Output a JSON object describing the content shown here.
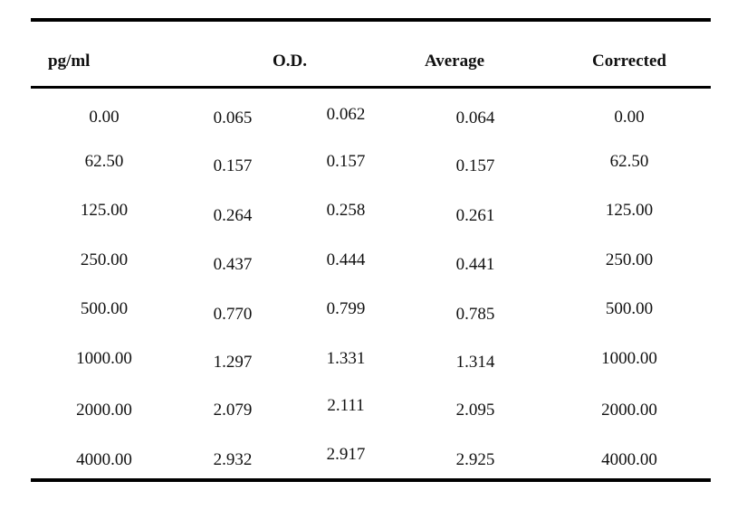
{
  "table": {
    "headers": {
      "concentration": "pg/ml",
      "od": "O.D.",
      "average": "Average",
      "corrected": "Corrected"
    },
    "rows": [
      {
        "conc": "0.00",
        "od1": "0.065",
        "od2": "0.062",
        "avg": "0.064",
        "corr": "0.00"
      },
      {
        "conc": "62.50",
        "od1": "0.157",
        "od2": "0.157",
        "avg": "0.157",
        "corr": "62.50"
      },
      {
        "conc": "125.00",
        "od1": "0.264",
        "od2": "0.258",
        "avg": "0.261",
        "corr": "125.00"
      },
      {
        "conc": "250.00",
        "od1": "0.437",
        "od2": "0.444",
        "avg": "0.441",
        "corr": "250.00"
      },
      {
        "conc": "500.00",
        "od1": "0.770",
        "od2": "0.799",
        "avg": "0.785",
        "corr": "500.00"
      },
      {
        "conc": "1000.00",
        "od1": "1.297",
        "od2": "1.331",
        "avg": "1.314",
        "corr": "1000.00"
      },
      {
        "conc": "2000.00",
        "od1": "2.079",
        "od2": "2.111",
        "avg": "2.095",
        "corr": "2000.00"
      },
      {
        "conc": "4000.00",
        "od1": "2.932",
        "od2": "2.917",
        "avg": "2.925",
        "corr": "4000.00"
      }
    ]
  }
}
